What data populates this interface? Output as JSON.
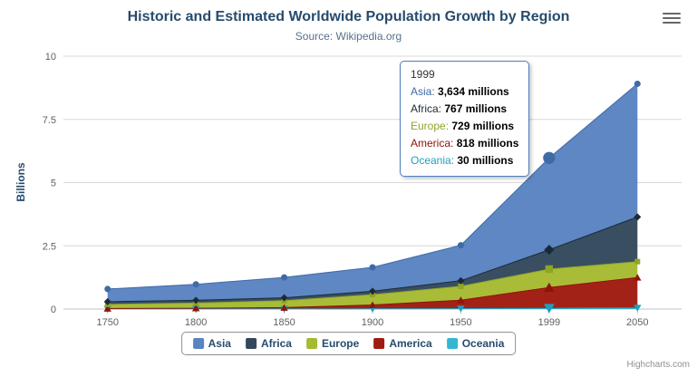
{
  "header": {
    "title": "Historic and Estimated Worldwide Population Growth by Region",
    "subtitle": "Source: Wikipedia.org"
  },
  "export_menu": {
    "icon": "hamburger-menu-icon"
  },
  "chart_data": {
    "type": "area",
    "stacking": "normal",
    "title": "Historic and Estimated Worldwide Population Growth by Region",
    "subtitle": "Source: Wikipedia.org",
    "ylabel": "Billions",
    "values_unit": "millions",
    "y_axis_unit": "billions",
    "ylim": [
      0,
      10
    ],
    "yticks": [
      0,
      2.5,
      5,
      7.5,
      10
    ],
    "grid": true,
    "legend_position": "bottom",
    "categories": [
      "1750",
      "1800",
      "1850",
      "1900",
      "1950",
      "1999",
      "2050"
    ],
    "series": [
      {
        "name": "Asia",
        "color": "#3F6AA5",
        "fill": "#5983C2",
        "marker": "circle",
        "values": [
          502,
          635,
          809,
          947,
          1402,
          3634,
          5268
        ]
      },
      {
        "name": "Africa",
        "color": "#1B2A38",
        "fill": "#33485C",
        "marker": "diamond",
        "values": [
          106,
          107,
          111,
          133,
          221,
          767,
          1766
        ]
      },
      {
        "name": "Europe",
        "color": "#8FA526",
        "fill": "#A6BA32",
        "marker": "square",
        "values": [
          163,
          203,
          276,
          408,
          547,
          729,
          628
        ]
      },
      {
        "name": "America",
        "color": "#8F1408",
        "fill": "#A01B0F",
        "marker": "triangle",
        "values": [
          18,
          31,
          54,
          156,
          339,
          818,
          1201
        ]
      },
      {
        "name": "Oceania",
        "color": "#1F9FBC",
        "fill": "#35B6D0",
        "marker": "triangle-down",
        "values": [
          2,
          2,
          2,
          6,
          13,
          30,
          46
        ]
      }
    ],
    "hover_category": "1999"
  },
  "tooltip": {
    "header": "1999",
    "border_color": "#4E7FBE",
    "rows": [
      {
        "name": "Asia",
        "value": "3,634 millions"
      },
      {
        "name": "Africa",
        "value": "767 millions"
      },
      {
        "name": "Europe",
        "value": "729 millions"
      },
      {
        "name": "America",
        "value": "818 millions"
      },
      {
        "name": "Oceania",
        "value": "30 millions"
      }
    ]
  },
  "credits": {
    "text": "Highcharts.com"
  }
}
